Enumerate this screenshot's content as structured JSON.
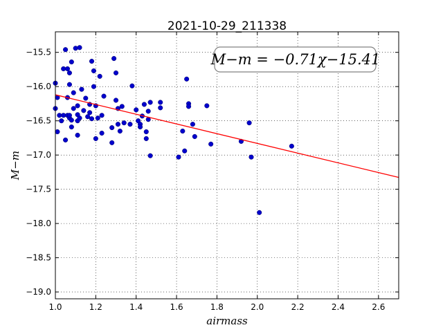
{
  "chart_data": {
    "type": "scatter",
    "title": "2021-10-29_211338",
    "xlabel": "airmass",
    "ylabel": "M−m",
    "xlim": [
      1.0,
      2.7
    ],
    "ylim": [
      -19.1,
      -15.2
    ],
    "x_ticks": [
      "1.0",
      "1.2",
      "1.4",
      "1.6",
      "1.8",
      "2.0",
      "2.2",
      "2.4",
      "2.6"
    ],
    "x_tick_values": [
      1.0,
      1.2,
      1.4,
      1.6,
      1.8,
      2.0,
      2.2,
      2.4,
      2.6
    ],
    "y_ticks": [
      "−15.5",
      "−16.0",
      "−16.5",
      "−17.0",
      "−17.5",
      "−18.0",
      "−18.5",
      "−19.0"
    ],
    "y_tick_values": [
      -15.5,
      -16.0,
      -16.5,
      -17.0,
      -17.5,
      -18.0,
      -18.5,
      -19.0
    ],
    "grid": true,
    "annotation": "M−m = −0.71χ−15.41",
    "fit": {
      "slope": -0.71,
      "intercept": -15.41,
      "color": "#ff0000"
    },
    "point_color": "#0000cc",
    "points": [
      {
        "x": 1.0,
        "y": -15.95
      },
      {
        "x": 1.0,
        "y": -16.32
      },
      {
        "x": 1.01,
        "y": -16.16
      },
      {
        "x": 1.01,
        "y": -16.66
      },
      {
        "x": 1.02,
        "y": -16.42
      },
      {
        "x": 1.03,
        "y": -16.5
      },
      {
        "x": 1.04,
        "y": -15.74
      },
      {
        "x": 1.04,
        "y": -16.42
      },
      {
        "x": 1.05,
        "y": -16.78
      },
      {
        "x": 1.05,
        "y": -15.46
      },
      {
        "x": 1.06,
        "y": -16.42
      },
      {
        "x": 1.06,
        "y": -16.16
      },
      {
        "x": 1.06,
        "y": -15.74
      },
      {
        "x": 1.07,
        "y": -15.8
      },
      {
        "x": 1.07,
        "y": -15.97
      },
      {
        "x": 1.07,
        "y": -16.46
      },
      {
        "x": 1.07,
        "y": -16.42
      },
      {
        "x": 1.08,
        "y": -16.49
      },
      {
        "x": 1.08,
        "y": -16.59
      },
      {
        "x": 1.08,
        "y": -15.64
      },
      {
        "x": 1.09,
        "y": -16.09
      },
      {
        "x": 1.09,
        "y": -16.32
      },
      {
        "x": 1.1,
        "y": -15.44
      },
      {
        "x": 1.11,
        "y": -16.28
      },
      {
        "x": 1.11,
        "y": -16.41
      },
      {
        "x": 1.11,
        "y": -16.5
      },
      {
        "x": 1.11,
        "y": -16.71
      },
      {
        "x": 1.12,
        "y": -15.43
      },
      {
        "x": 1.12,
        "y": -16.46
      },
      {
        "x": 1.13,
        "y": -16.04
      },
      {
        "x": 1.14,
        "y": -16.35
      },
      {
        "x": 1.15,
        "y": -16.17
      },
      {
        "x": 1.16,
        "y": -16.44
      },
      {
        "x": 1.17,
        "y": -16.26
      },
      {
        "x": 1.17,
        "y": -16.38
      },
      {
        "x": 1.18,
        "y": -15.63
      },
      {
        "x": 1.18,
        "y": -16.47
      },
      {
        "x": 1.19,
        "y": -15.77
      },
      {
        "x": 1.19,
        "y": -16.0
      },
      {
        "x": 1.2,
        "y": -16.28
      },
      {
        "x": 1.2,
        "y": -16.76
      },
      {
        "x": 1.21,
        "y": -16.46
      },
      {
        "x": 1.22,
        "y": -15.85
      },
      {
        "x": 1.23,
        "y": -16.42
      },
      {
        "x": 1.23,
        "y": -16.68
      },
      {
        "x": 1.24,
        "y": -16.14
      },
      {
        "x": 1.28,
        "y": -16.6
      },
      {
        "x": 1.28,
        "y": -16.82
      },
      {
        "x": 1.29,
        "y": -15.59
      },
      {
        "x": 1.3,
        "y": -15.8
      },
      {
        "x": 1.3,
        "y": -16.2
      },
      {
        "x": 1.31,
        "y": -16.32
      },
      {
        "x": 1.31,
        "y": -16.55
      },
      {
        "x": 1.32,
        "y": -16.65
      },
      {
        "x": 1.33,
        "y": -16.29
      },
      {
        "x": 1.34,
        "y": -16.53
      },
      {
        "x": 1.37,
        "y": -16.55
      },
      {
        "x": 1.38,
        "y": -15.99
      },
      {
        "x": 1.4,
        "y": -16.34
      },
      {
        "x": 1.41,
        "y": -16.5
      },
      {
        "x": 1.42,
        "y": -16.55
      },
      {
        "x": 1.42,
        "y": -16.59
      },
      {
        "x": 1.43,
        "y": -16.43
      },
      {
        "x": 1.44,
        "y": -16.26
      },
      {
        "x": 1.45,
        "y": -16.76
      },
      {
        "x": 1.45,
        "y": -16.66
      },
      {
        "x": 1.46,
        "y": -16.48
      },
      {
        "x": 1.46,
        "y": -16.36
      },
      {
        "x": 1.47,
        "y": -17.01
      },
      {
        "x": 1.47,
        "y": -16.23
      },
      {
        "x": 1.52,
        "y": -16.31
      },
      {
        "x": 1.52,
        "y": -16.23
      },
      {
        "x": 1.61,
        "y": -17.03
      },
      {
        "x": 1.63,
        "y": -16.65
      },
      {
        "x": 1.64,
        "y": -16.94
      },
      {
        "x": 1.65,
        "y": -15.89
      },
      {
        "x": 1.66,
        "y": -16.25
      },
      {
        "x": 1.66,
        "y": -16.29
      },
      {
        "x": 1.68,
        "y": -16.55
      },
      {
        "x": 1.69,
        "y": -16.73
      },
      {
        "x": 1.75,
        "y": -16.28
      },
      {
        "x": 1.77,
        "y": -16.84
      },
      {
        "x": 1.92,
        "y": -16.8
      },
      {
        "x": 1.96,
        "y": -16.53
      },
      {
        "x": 1.97,
        "y": -17.03
      },
      {
        "x": 2.01,
        "y": -17.84
      },
      {
        "x": 2.17,
        "y": -16.87
      }
    ]
  }
}
